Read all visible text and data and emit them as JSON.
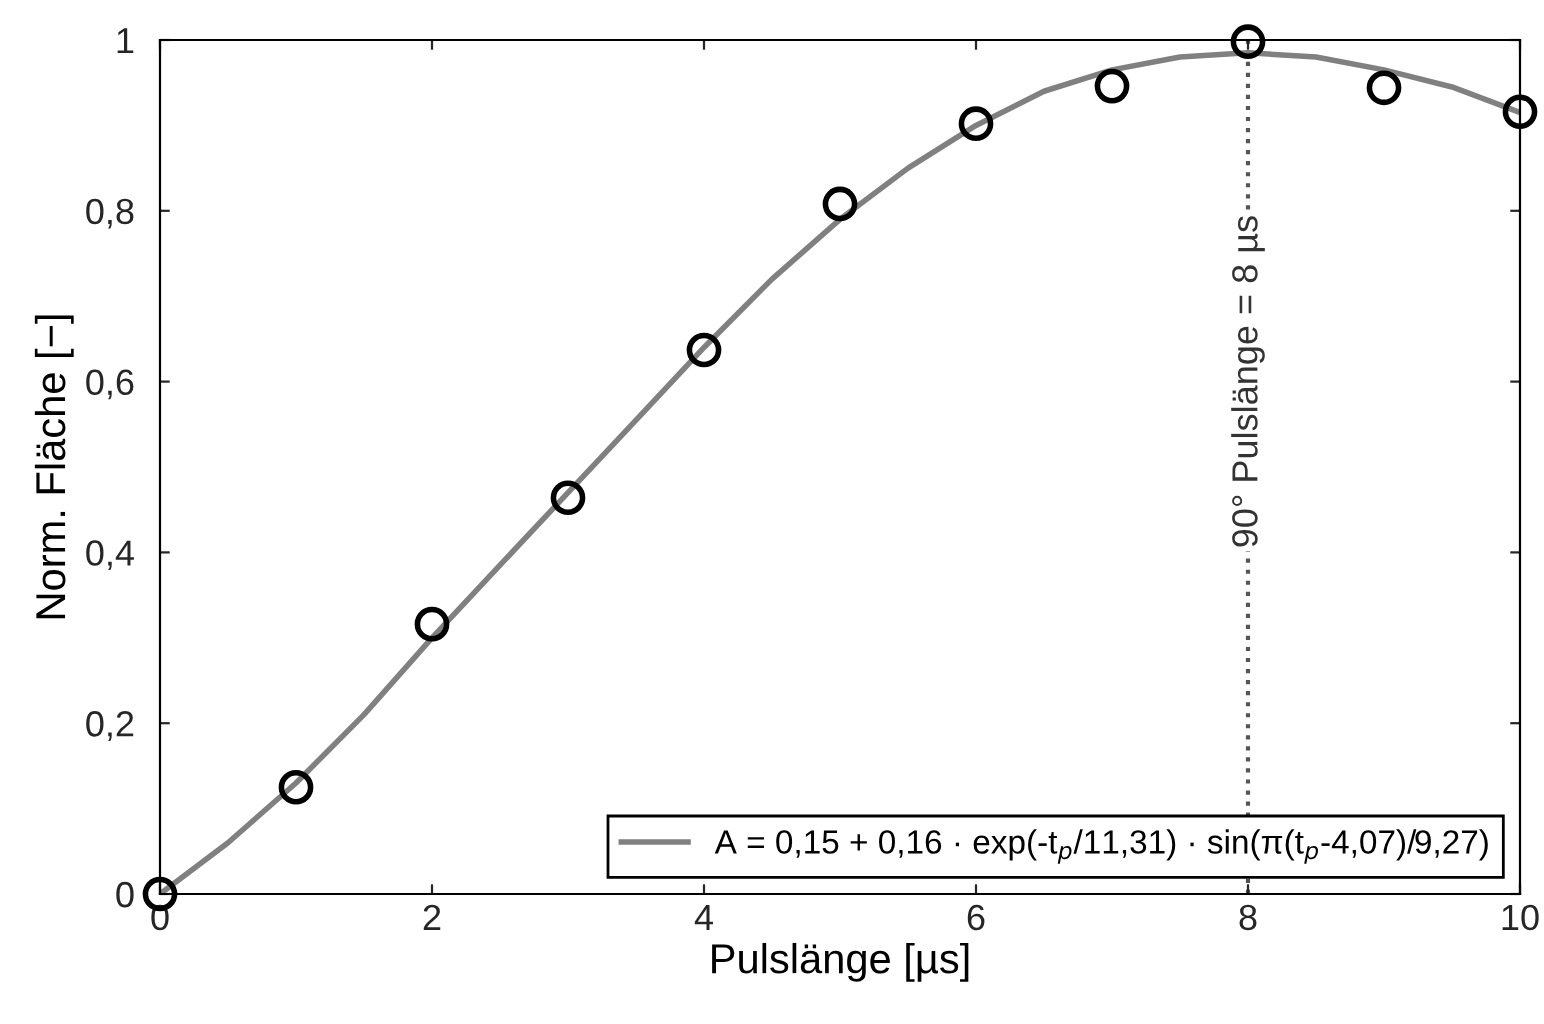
{
  "chart_data": {
    "type": "scatter",
    "xlabel": "Pulslänge [µs]",
    "ylabel": "Norm. Fläche [−]",
    "xlim": [
      0,
      10
    ],
    "xticks": [
      0,
      2,
      4,
      6,
      8,
      10
    ],
    "ylim": [
      0,
      1
    ],
    "yticks": [
      0,
      {
        "value": 0.2,
        "label": "0,2"
      },
      {
        "value": 0.4,
        "label": "0,4"
      },
      {
        "value": 0.6,
        "label": "0,6"
      },
      {
        "value": 0.8,
        "label": "0,8"
      },
      1
    ],
    "grid": false,
    "legend": "bottom right",
    "series": [
      {
        "color": "#000000",
        "marker": "circle",
        "x": [
          0,
          1,
          2,
          3,
          4,
          5,
          6,
          7,
          8,
          9,
          10
        ],
        "values": [
          0,
          0.125,
          0.316,
          0.464,
          0.637,
          0.808,
          0.902,
          0.946,
          0.998,
          0.944,
          0.916
        ]
      },
      {
        "type": "line",
        "name": "A = 0,15 + 0,16 · exp(-t$_{p}$/11,31) · sin(π(t$_{p}$-4,07)/9,27)",
        "color": "#808080",
        "line_style": "solid",
        "x": [
          0,
          0.5,
          1,
          1.5,
          2,
          2.5,
          3,
          3.5,
          4,
          4.5,
          5,
          5.5,
          6,
          6.5,
          7,
          7.5,
          8,
          8.5,
          9,
          9.5,
          10
        ],
        "values": [
          0,
          0.06,
          0.13,
          0.21,
          0.3,
          0.385,
          0.47,
          0.555,
          0.64,
          0.72,
          0.79,
          0.85,
          0.9,
          0.94,
          0.965,
          0.98,
          0.985,
          0.98,
          0.965,
          0.945,
          0.915
        ]
      }
    ],
    "ref_lines": [
      {
        "axis": "x",
        "value": 8,
        "label": "90° Pulslänge = 8 µs",
        "color": "#555555",
        "line_style": "dotted"
      }
    ]
  }
}
